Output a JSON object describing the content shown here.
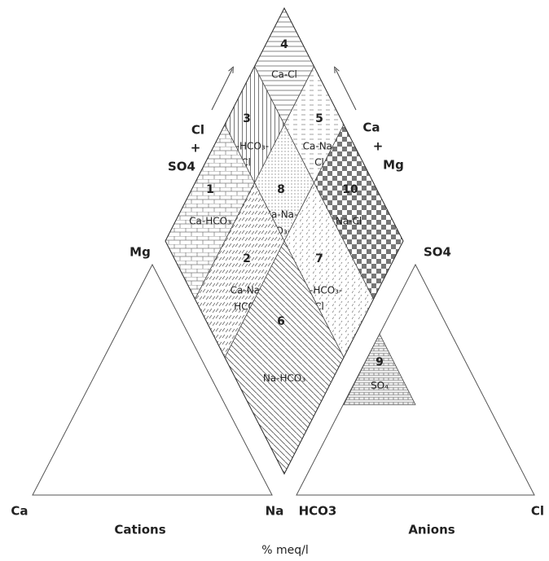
{
  "corner_labels": {
    "mg": "Mg",
    "so4_top": "SO4",
    "ca": "Ca",
    "na": "Na",
    "hco3": "HCO3",
    "cl": "Cl"
  },
  "left_axis": [
    "Cl",
    "+",
    "SO4"
  ],
  "right_axis": [
    "Ca",
    "+",
    "Mg"
  ],
  "cations": "Cations",
  "anions": "Anions",
  "units": "% meq/l",
  "regions": [
    {
      "number": "4",
      "label": [
        "Ca-Cl"
      ]
    },
    {
      "number": "3",
      "label": [
        "Ca-HCO₃-",
        "Cl"
      ]
    },
    {
      "number": "5",
      "label": [
        "Ca-Na-",
        "Cl"
      ]
    },
    {
      "number": "1",
      "label": [
        "Ca-HCO₃"
      ]
    },
    {
      "number": "8",
      "label": [
        "Ca-Na-",
        "HCO₃-Cl"
      ]
    },
    {
      "number": "10",
      "label": [
        "Na-Cl"
      ]
    },
    {
      "number": "2",
      "label": [
        "Ca-Na-",
        "HCO₃"
      ]
    },
    {
      "number": "7",
      "label": [
        "Na-HCO₃-",
        "Cl"
      ]
    },
    {
      "number": "6",
      "label": [
        "Na-HCO₃"
      ]
    },
    {
      "number": "9",
      "label": [
        "SO₄"
      ]
    }
  ]
}
